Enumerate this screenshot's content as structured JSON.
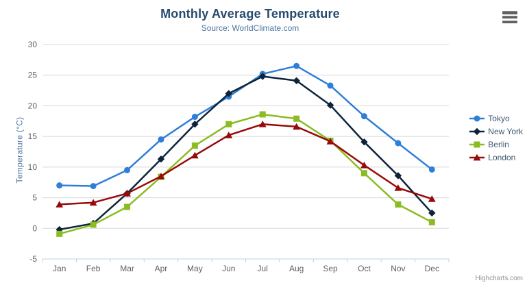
{
  "chart": {
    "title": "Monthly Average Temperature",
    "subtitle": "Source: WorldClimate.com",
    "y_axis_title": "Temperature (°C)",
    "credits": "Highcharts.com",
    "export_icon": "hamburger-icon",
    "background_color": "#ffffff",
    "grid_color": "#d8d8d8",
    "axis_line_color": "#c0d0e0",
    "tick_label_color": "#606060"
  },
  "chart_data": {
    "type": "line",
    "title": "Monthly Average Temperature",
    "subtitle": "Source: WorldClimate.com",
    "xlabel": "",
    "ylabel": "Temperature (°C)",
    "categories": [
      "Jan",
      "Feb",
      "Mar",
      "Apr",
      "May",
      "Jun",
      "Jul",
      "Aug",
      "Sep",
      "Oct",
      "Nov",
      "Dec"
    ],
    "y_ticks": [
      -5,
      0,
      5,
      10,
      15,
      20,
      25,
      30
    ],
    "ylim": [
      -5,
      30
    ],
    "grid": true,
    "legend_position": "right",
    "series": [
      {
        "name": "Tokyo",
        "color": "#2f7ed8",
        "marker": "circle",
        "values": [
          7.0,
          6.9,
          9.5,
          14.5,
          18.2,
          21.5,
          25.2,
          26.5,
          23.3,
          18.3,
          13.9,
          9.6
        ]
      },
      {
        "name": "New York",
        "color": "#0d233a",
        "marker": "diamond",
        "values": [
          -0.2,
          0.8,
          5.7,
          11.3,
          17.0,
          22.0,
          24.8,
          24.1,
          20.1,
          14.1,
          8.6,
          2.5
        ]
      },
      {
        "name": "Berlin",
        "color": "#8bbc21",
        "marker": "square",
        "values": [
          -0.9,
          0.6,
          3.5,
          8.4,
          13.5,
          17.0,
          18.6,
          17.9,
          14.3,
          9.0,
          3.9,
          1.0
        ]
      },
      {
        "name": "London",
        "color": "#980a0a",
        "marker": "triangle",
        "values": [
          3.9,
          4.2,
          5.7,
          8.5,
          11.9,
          15.2,
          17.0,
          16.6,
          14.2,
          10.3,
          6.6,
          4.8
        ]
      }
    ]
  }
}
